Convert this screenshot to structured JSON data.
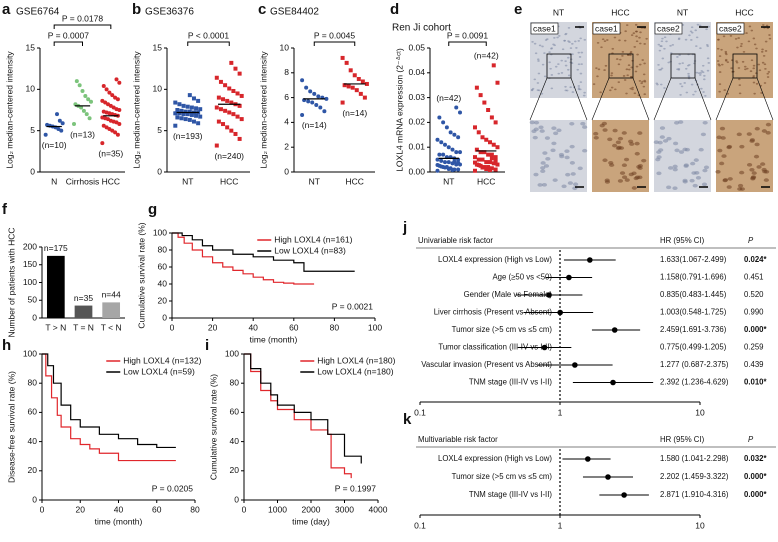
{
  "chart_data": [
    {
      "type": "dot",
      "panel": "a",
      "title": "GSE6764",
      "ylabel": "Log₂ median-centered intensity",
      "ylim": [
        0,
        15
      ],
      "yticks": [
        0,
        5,
        10,
        15
      ],
      "groups": [
        {
          "name": "N",
          "color": "#2f56a6",
          "marker": "circle",
          "n_label": "(n=10)",
          "mean": 5.5,
          "values": [
            4.5,
            5,
            5.2,
            5.4,
            5.5,
            5.6,
            5.7,
            5.9,
            6.2,
            7
          ]
        },
        {
          "name": "Cirrhosis",
          "color": "#7cc47c",
          "marker": "circle",
          "n_label": "(n=13)",
          "mean": 8,
          "values": [
            5.8,
            6.5,
            7,
            7.4,
            7.8,
            8,
            8.2,
            8.5,
            8.8,
            9.2,
            9.8,
            10.5,
            11
          ]
        },
        {
          "name": "HCC",
          "color": "#d7262b",
          "marker": "circle",
          "n_label": "(n=35)",
          "mean": 6.8,
          "values": [
            3.5,
            4.5,
            4.8,
            5,
            5.2,
            5.4,
            5.6,
            5.8,
            6,
            6.1,
            6.2,
            6.4,
            6.5,
            6.6,
            6.8,
            6.9,
            7,
            7.1,
            7.2,
            7.3,
            7.5,
            7.6,
            7.8,
            8,
            8.2,
            8.4,
            8.6,
            8.8,
            9,
            9.3,
            9.6,
            10,
            10.4,
            10.8,
            11.2
          ]
        }
      ],
      "comparisons": [
        {
          "groups": [
            0,
            1
          ],
          "label": "P = 0.0007"
        },
        {
          "groups": [
            0,
            2
          ],
          "label": "P = 0.0178"
        }
      ]
    },
    {
      "type": "dot",
      "panel": "b",
      "title": "GSE36376",
      "ylabel": "Log₂ median-centered intensity",
      "ylim": [
        0,
        15
      ],
      "yticks": [
        0,
        5,
        10,
        15
      ],
      "groups": [
        {
          "name": "NT",
          "color": "#2f56a6",
          "marker": "square",
          "n_label": "(n=193)",
          "mean": 7.2,
          "values": [
            5.6,
            5.9,
            6.1,
            6.3,
            6.4,
            6.5,
            6.6,
            6.7,
            6.8,
            6.9,
            7,
            7,
            7.1,
            7.1,
            7.2,
            7.2,
            7.3,
            7.3,
            7.4,
            7.5,
            7.6,
            7.7,
            7.8,
            7.9,
            8,
            8.2,
            8.4,
            8.6,
            8.9,
            9.3
          ]
        },
        {
          "name": "HCC",
          "color": "#d7262b",
          "marker": "square",
          "n_label": "(n=240)",
          "mean": 8.2,
          "values": [
            3.2,
            4,
            4.6,
            5,
            5.4,
            5.8,
            6.1,
            6.4,
            6.7,
            7,
            7.2,
            7.4,
            7.6,
            7.8,
            8,
            8.2,
            8.4,
            8.6,
            8.8,
            9,
            9.2,
            9.5,
            9.8,
            10.1,
            10.5,
            10.9,
            11.4,
            11.9,
            12.5,
            13.2
          ]
        }
      ],
      "comparisons": [
        {
          "groups": [
            0,
            1
          ],
          "label": "P < 0.0001"
        }
      ]
    },
    {
      "type": "dot",
      "panel": "c",
      "title": "GSE84402",
      "ylabel": "Log₂ median-centered intensity",
      "ylim": [
        0,
        10
      ],
      "yticks": [
        0,
        2,
        4,
        6,
        8,
        10
      ],
      "groups": [
        {
          "name": "NT",
          "color": "#2f56a6",
          "marker": "circle",
          "n_label": "(n=14)",
          "mean": 5.9,
          "values": [
            4.6,
            4.9,
            5.2,
            5.4,
            5.6,
            5.7,
            5.8,
            5.9,
            6,
            6.1,
            6.3,
            6.5,
            6.8,
            7.4
          ]
        },
        {
          "name": "HCC",
          "color": "#d7262b",
          "marker": "square",
          "n_label": "(n=14)",
          "mean": 7.1,
          "values": [
            5.6,
            6,
            6.3,
            6.6,
            6.8,
            6.9,
            7,
            7.1,
            7.3,
            7.5,
            7.8,
            8.2,
            8.8,
            9.2
          ]
        }
      ],
      "comparisons": [
        {
          "groups": [
            0,
            1
          ],
          "label": "P = 0.0045"
        }
      ]
    },
    {
      "type": "dot",
      "panel": "d",
      "title": "Ren Ji cohort",
      "ylabel": "LOXL4 mRNA expression (2⁻ᐞᶜᵗ)",
      "ylim": [
        0,
        0.05
      ],
      "yticks": [
        {
          "value": 0,
          "label": "0.00"
        },
        {
          "value": 0.01,
          "label": "0.01"
        },
        {
          "value": 0.02,
          "label": "0.02"
        },
        {
          "value": 0.03,
          "label": "0.03"
        },
        {
          "value": 0.04,
          "label": "0.04"
        },
        {
          "value": 0.05,
          "label": "0.05"
        }
      ],
      "groups": [
        {
          "name": "NT",
          "color": "#2f56a6",
          "marker": "circle",
          "n_label": "(n=42)",
          "mean": 0.0055,
          "values": [
            0.0005,
            0.001,
            0.001,
            0.0015,
            0.002,
            0.002,
            0.0025,
            0.003,
            0.003,
            0.0035,
            0.004,
            0.004,
            0.0045,
            0.005,
            0.005,
            0.0055,
            0.006,
            0.006,
            0.007,
            0.007,
            0.008,
            0.008,
            0.009,
            0.01,
            0.011,
            0.012,
            0.013,
            0.014,
            0.015,
            0.016,
            0.018,
            0.02,
            0.022,
            0.024,
            0.026,
            0.0008,
            0.0012,
            0.0018,
            0.0022,
            0.0028,
            0.0038,
            0.0042
          ]
        },
        {
          "name": "HCC",
          "color": "#d7262b",
          "marker": "square",
          "n_label": "(n=42)",
          "mean": 0.0085,
          "values": [
            0.0005,
            0.001,
            0.0015,
            0.002,
            0.002,
            0.0025,
            0.003,
            0.003,
            0.0035,
            0.004,
            0.004,
            0.005,
            0.005,
            0.006,
            0.006,
            0.007,
            0.007,
            0.008,
            0.008,
            0.009,
            0.01,
            0.011,
            0.012,
            0.013,
            0.014,
            0.016,
            0.018,
            0.02,
            0.022,
            0.025,
            0.028,
            0.031,
            0.034,
            0.036,
            0.043,
            0.0008,
            0.0012,
            0.0018,
            0.0028,
            0.0038,
            0.0045,
            0.0055
          ]
        }
      ],
      "comparisons": [
        {
          "groups": [
            0,
            1
          ],
          "label": "P = 0.0091"
        }
      ]
    },
    {
      "type": "micrograph",
      "panel": "e",
      "columns": [
        "NT",
        "HCC",
        "NT",
        "HCC"
      ],
      "cases": [
        "case1",
        "case1",
        "case2",
        "case2"
      ]
    },
    {
      "type": "bar",
      "panel": "f",
      "ylabel": "Number of patients with HCC",
      "categories": [
        "T > N",
        "T = N",
        "T < N"
      ],
      "values": [
        175,
        35,
        44
      ],
      "value_labels": [
        "n=175",
        "n=35",
        "n=44"
      ],
      "colors": [
        "#000000",
        "#555555",
        "#a6a6a6"
      ],
      "ylim": [
        0,
        200
      ],
      "yticks": [
        0,
        50,
        100,
        150,
        200
      ]
    },
    {
      "type": "km",
      "panel": "g",
      "ylabel": "Cumulative survival rate (%)",
      "xlabel": "time (month)",
      "xlim": [
        0,
        100
      ],
      "xticks": [
        0,
        20,
        40,
        60,
        80,
        100
      ],
      "ylim": [
        0,
        100
      ],
      "yticks": [
        0,
        20,
        40,
        60,
        80,
        100
      ],
      "p_label": "P = 0.0021",
      "series": [
        {
          "name": "High LOXL4 (n=161)",
          "color": "#e0262b",
          "x": [
            0,
            3,
            6,
            10,
            15,
            20,
            25,
            30,
            35,
            40,
            45,
            50,
            55,
            60,
            65,
            70
          ],
          "y": [
            100,
            95,
            88,
            80,
            72,
            65,
            60,
            56,
            52,
            48,
            45,
            42,
            41,
            40,
            40,
            40
          ]
        },
        {
          "name": "Low LOXL4 (n=83)",
          "color": "#000000",
          "x": [
            0,
            5,
            10,
            15,
            20,
            30,
            40,
            50,
            60,
            65,
            70,
            80,
            90
          ],
          "y": [
            100,
            97,
            92,
            85,
            80,
            75,
            72,
            68,
            65,
            55,
            55,
            55,
            55
          ]
        }
      ]
    },
    {
      "type": "km",
      "panel": "h",
      "ylabel": "Disease-free survival rate (%)",
      "xlabel": "time (month)",
      "xlim": [
        0,
        80
      ],
      "xticks": [
        0,
        20,
        40,
        60,
        80
      ],
      "ylim": [
        0,
        100
      ],
      "yticks": [
        0,
        20,
        40,
        60,
        80,
        100
      ],
      "p_label": "P = 0.0205",
      "series": [
        {
          "name": "High LOXL4 (n=132)",
          "color": "#e0262b",
          "x": [
            0,
            2,
            5,
            8,
            10,
            15,
            20,
            25,
            30,
            40,
            50,
            60,
            70
          ],
          "y": [
            100,
            85,
            70,
            58,
            50,
            42,
            38,
            35,
            32,
            27,
            27,
            27,
            27
          ]
        },
        {
          "name": "Low LOXL4 (n=59)",
          "color": "#000000",
          "x": [
            0,
            3,
            6,
            10,
            15,
            20,
            30,
            40,
            50,
            60,
            70
          ],
          "y": [
            100,
            92,
            80,
            65,
            55,
            50,
            45,
            42,
            38,
            36,
            36
          ]
        }
      ]
    },
    {
      "type": "km",
      "panel": "i",
      "ylabel": "Cumulative survival rate (%)",
      "xlabel": "time (day)",
      "xlim": [
        0,
        4000
      ],
      "xticks": [
        0,
        1000,
        2000,
        3000,
        4000
      ],
      "ylim": [
        0,
        100
      ],
      "yticks": [
        0,
        20,
        40,
        60,
        80,
        100
      ],
      "p_label": "P = 0.1997",
      "series": [
        {
          "name": "High LOXL4 (n=180)",
          "color": "#e0262b",
          "x": [
            0,
            200,
            500,
            800,
            1000,
            1500,
            2000,
            2500,
            2600,
            3000,
            3200
          ],
          "y": [
            100,
            88,
            75,
            68,
            62,
            55,
            48,
            45,
            22,
            18,
            15
          ]
        },
        {
          "name": "Low LOXL4 (n=180)",
          "color": "#000000",
          "x": [
            0,
            200,
            500,
            800,
            1000,
            1500,
            2000,
            2500,
            3000,
            3500
          ],
          "y": [
            100,
            90,
            80,
            72,
            65,
            60,
            55,
            45,
            30,
            25
          ]
        }
      ]
    },
    {
      "type": "forest",
      "panel": "j",
      "header": {
        "factor": "Univariable risk factor",
        "hr": "HR (95% CI)",
        "p": "P"
      },
      "log_scale": true,
      "xlim": [
        0.1,
        10
      ],
      "xticks": [
        0.1,
        1,
        10
      ],
      "ref": 1,
      "rows": [
        {
          "label": "LOXL4 expression (High vs Low)",
          "hr": 1.633,
          "ci": [
            1.067,
            2.499
          ],
          "hr_label": "1.633(1.067-2.499)",
          "p": "0.024*",
          "significant": true
        },
        {
          "label": "Age (≥50 vs <50)",
          "hr": 1.158,
          "ci": [
            0.791,
            1.696
          ],
          "hr_label": "1.158(0.791-1.696)",
          "p": "0.451",
          "significant": false
        },
        {
          "label": "Gender (Male vs Female)",
          "hr": 0.835,
          "ci": [
            0.483,
            1.445
          ],
          "hr_label": "0.835(0.483-1.445)",
          "p": "0.520",
          "significant": false
        },
        {
          "label": "Liver cirrhosis (Present vs Absent)",
          "hr": 1.003,
          "ci": [
            0.548,
            1.725
          ],
          "hr_label": "1.003(0.548-1.725)",
          "p": "0.990",
          "significant": false
        },
        {
          "label": "Tumor size (>5 cm vs ≤5 cm)",
          "hr": 2.459,
          "ci": [
            1.691,
            3.736
          ],
          "hr_label": "2.459(1.691-3.736)",
          "p": "0.000*",
          "significant": true
        },
        {
          "label": "Tumor classification (III-IV vs I-II)",
          "hr": 0.775,
          "ci": [
            0.499,
            1.205
          ],
          "hr_label": "0.775(0.499-1.205)",
          "p": "0.259",
          "significant": false
        },
        {
          "label": "Vascular invasion (Present vs Absent)",
          "hr": 1.277,
          "ci": [
            0.687,
            2.375
          ],
          "hr_label": "1.277 (0.687-2.375)",
          "p": "0.439",
          "significant": false
        },
        {
          "label": "TNM stage (III-IV vs I-II)",
          "hr": 2.392,
          "ci": [
            1.236,
            4.629
          ],
          "hr_label": "2.392 (1.236-4.629)",
          "p": "0.010*",
          "significant": true
        }
      ]
    },
    {
      "type": "forest",
      "panel": "k",
      "header": {
        "factor": "Multivariable risk factor",
        "hr": "HR (95% CI)",
        "p": "P"
      },
      "log_scale": true,
      "xlim": [
        0.1,
        10
      ],
      "xticks": [
        0.1,
        1,
        10
      ],
      "ref": 1,
      "rows": [
        {
          "label": "LOXL4 expression (High vs Low)",
          "hr": 1.58,
          "ci": [
            1.041,
            2.298
          ],
          "hr_label": "1.580 (1.041-2.298)",
          "p": "0.032*",
          "significant": true
        },
        {
          "label": "Tumor size (>5 cm vs ≤5 cm)",
          "hr": 2.202,
          "ci": [
            1.459,
            3.322
          ],
          "hr_label": "2.202 (1.459-3.322)",
          "p": "0.000*",
          "significant": true
        },
        {
          "label": "TNM stage (III-IV vs I-II)",
          "hr": 2.871,
          "ci": [
            1.91,
            4.316
          ],
          "hr_label": "2.871 (1.910-4.316)",
          "p": "0.000*",
          "significant": true
        }
      ]
    }
  ]
}
